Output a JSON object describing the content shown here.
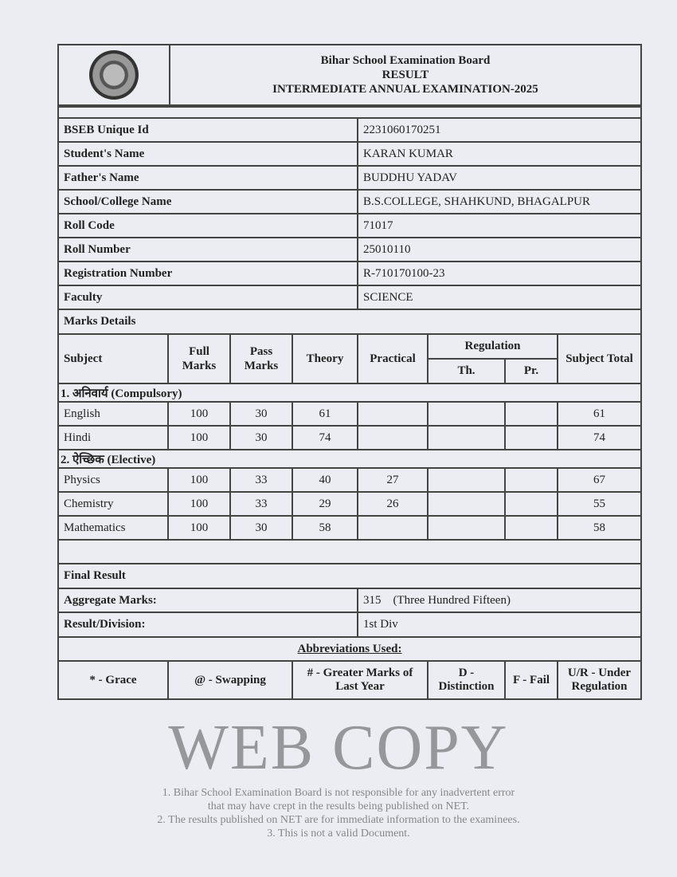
{
  "header": {
    "board": "Bihar School Examination Board",
    "result": "RESULT",
    "exam": "INTERMEDIATE ANNUAL EXAMINATION-2025",
    "logo": "bseb-seal"
  },
  "info": [
    {
      "label": "BSEB Unique Id",
      "value": "2231060170251"
    },
    {
      "label": "Student's Name",
      "value": "KARAN KUMAR"
    },
    {
      "label": "Father's Name",
      "value": "BUDDHU YADAV"
    },
    {
      "label": "School/College Name",
      "value": "B.S.COLLEGE, SHAHKUND, BHAGALPUR"
    },
    {
      "label": "Roll Code",
      "value": "71017"
    },
    {
      "label": "Roll Number",
      "value": "25010110"
    },
    {
      "label": "Registration Number",
      "value": "R-710170100-23"
    },
    {
      "label": "Faculty",
      "value": "SCIENCE"
    }
  ],
  "marks": {
    "title": "Marks Details",
    "headers": {
      "subject": "Subject",
      "full": "Full Marks",
      "pass": "Pass Marks",
      "theory": "Theory",
      "practical": "Practical",
      "regulation": "Regulation",
      "th": "Th.",
      "pr": "Pr.",
      "total": "Subject Total"
    },
    "groups": [
      {
        "label": "1. अनिवार्य (Compulsory)",
        "rows": [
          {
            "subject": "English",
            "full": "100",
            "pass": "30",
            "theory": "61",
            "practical": "",
            "th": "",
            "pr": "",
            "total": "61"
          },
          {
            "subject": "Hindi",
            "full": "100",
            "pass": "30",
            "theory": "74",
            "practical": "",
            "th": "",
            "pr": "",
            "total": "74"
          }
        ]
      },
      {
        "label": "2. ऐच्छिक (Elective)",
        "rows": [
          {
            "subject": "Physics",
            "full": "100",
            "pass": "33",
            "theory": "40",
            "practical": "27",
            "th": "",
            "pr": "",
            "total": "67"
          },
          {
            "subject": "Chemistry",
            "full": "100",
            "pass": "33",
            "theory": "29",
            "practical": "26",
            "th": "",
            "pr": "",
            "total": "55"
          },
          {
            "subject": "Mathematics",
            "full": "100",
            "pass": "30",
            "theory": "58",
            "practical": "",
            "th": "",
            "pr": "",
            "total": "58"
          }
        ]
      }
    ]
  },
  "final": {
    "title": "Final Result",
    "aggregate_label": "Aggregate Marks:",
    "aggregate_value": "315    (Three Hundred Fifteen)",
    "division_label": "Result/Division:",
    "division_value": "1st Div"
  },
  "abbreviations": {
    "title": "Abbreviations Used:",
    "items": [
      "* - Grace",
      "@ - Swapping",
      "# - Greater Marks of Last Year",
      "D - Distinction",
      "F - Fail",
      "U/R - Under Regulation"
    ]
  },
  "watermark": {
    "big": "WEB COPY",
    "lines": [
      "1. Bihar School Examination Board is not responsible for any inadvertent error",
      "that may have crept in the results being published on NET.",
      "2. The results published on NET are for immediate information to the examinees.",
      "3. This is not a valid Document."
    ]
  }
}
